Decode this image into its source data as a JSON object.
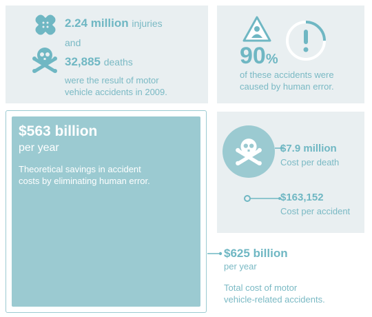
{
  "stats_panel": {
    "injuries_value": "2.24 million",
    "injuries_label": "injuries",
    "and_text": "and",
    "deaths_value": "32,885",
    "deaths_label": "deaths",
    "result_text_line1": "were the result of motor",
    "result_text_line2": "vehicle accidents in 2009."
  },
  "human_error_panel": {
    "percent_value": "90",
    "percent_sign": "%",
    "caption_line1": "of these accidents were",
    "caption_line2": "caused by human error."
  },
  "savings_panel": {
    "amount": "$563 billion",
    "period": "per year",
    "desc_line1": "Theoretical savings in accident",
    "desc_line2": "costs by eliminating human error."
  },
  "cost_panel": {
    "death_cost_value": "$7.9 million",
    "death_cost_label": "Cost per death",
    "accident_cost_value": "$163,152",
    "accident_cost_label": "Cost per accident"
  },
  "total_cost": {
    "amount": "$625 billion",
    "period": "per year",
    "desc_line1": "Total cost of motor",
    "desc_line2": "vehicle-related accidents."
  },
  "colors": {
    "teal": "#6fb7c3",
    "teal_fill": "#9bcad1",
    "panel_bg": "#e9eff1"
  }
}
